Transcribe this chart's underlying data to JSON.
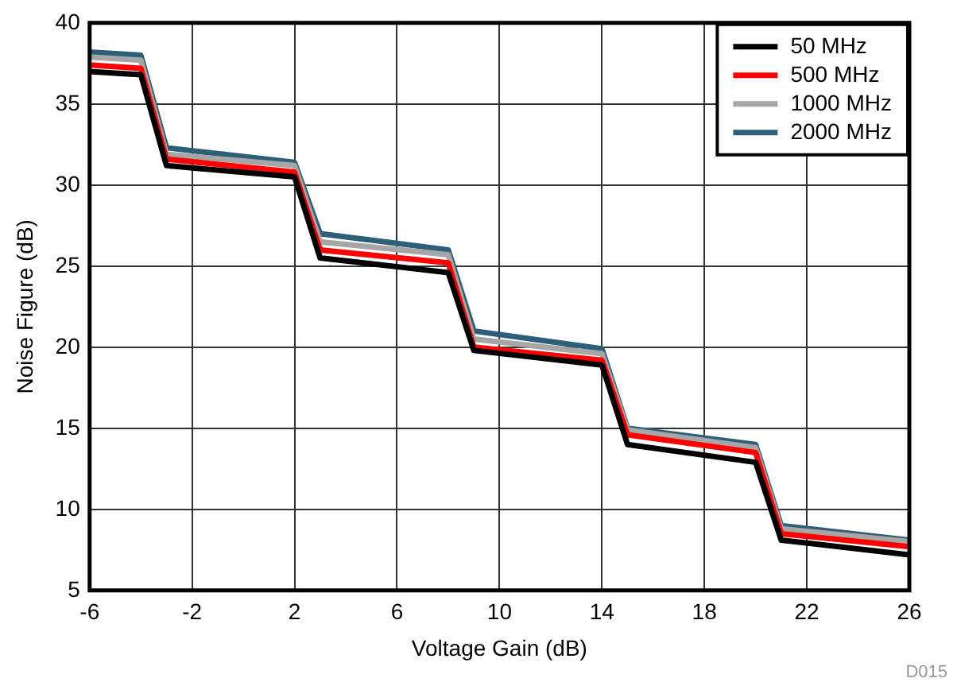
{
  "chart_data": {
    "type": "line",
    "xlabel": "Voltage Gain (dB)",
    "ylabel": "Noise Figure (dB)",
    "x": [
      -6,
      -4,
      -3,
      2,
      3,
      8,
      9,
      14,
      15,
      20,
      21,
      26
    ],
    "series": [
      {
        "name": "50 MHz",
        "color": "#000000",
        "values": [
          37.0,
          36.8,
          31.2,
          30.5,
          25.5,
          24.6,
          19.8,
          18.9,
          14.0,
          12.9,
          8.1,
          7.2
        ]
      },
      {
        "name": "500 MHz",
        "color": "#ff0000",
        "values": [
          37.4,
          37.2,
          31.6,
          30.8,
          26.0,
          25.2,
          20.0,
          19.2,
          14.6,
          13.5,
          8.5,
          7.7
        ]
      },
      {
        "name": "1000 MHz",
        "color": "#a6a6a6",
        "values": [
          37.9,
          37.7,
          31.9,
          31.2,
          26.5,
          25.7,
          20.5,
          19.6,
          14.9,
          13.8,
          8.8,
          8.0
        ]
      },
      {
        "name": "2000 MHz",
        "color": "#2f5f78",
        "values": [
          38.2,
          38.0,
          32.3,
          31.4,
          27.0,
          26.0,
          21.0,
          19.9,
          15.0,
          14.0,
          9.0,
          8.1
        ]
      }
    ],
    "xlim": [
      -6,
      26
    ],
    "xticks": [
      -6,
      -2,
      2,
      6,
      10,
      14,
      18,
      22,
      26
    ],
    "ylim": [
      5,
      40
    ],
    "yticks": [
      5,
      10,
      15,
      20,
      25,
      30,
      35,
      40
    ],
    "grid": true,
    "legend": "top right",
    "marker": "none",
    "line_style": "solid",
    "annotations": [
      "D015"
    ]
  }
}
